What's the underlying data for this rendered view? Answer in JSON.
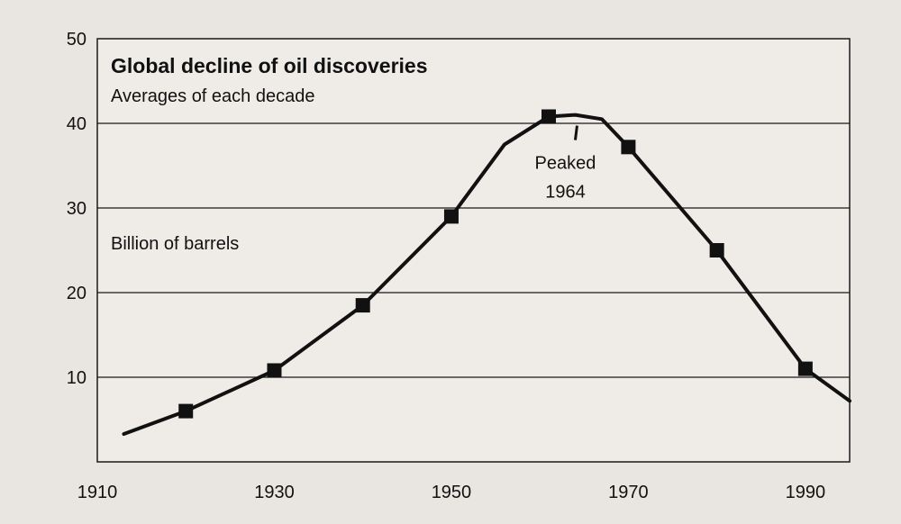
{
  "chart_data": {
    "type": "line",
    "title": "Global decline of oil discoveries",
    "subtitle": "Averages of each decade",
    "ylabel": "Billion of barrels",
    "xlabel": "",
    "xlim": [
      1910,
      1995
    ],
    "ylim": [
      0,
      50
    ],
    "x_ticks": [
      1910,
      1930,
      1950,
      1970,
      1990
    ],
    "y_ticks": [
      10,
      20,
      30,
      40,
      50
    ],
    "grid": "horizontal",
    "line": {
      "x": [
        1913,
        1920,
        1930,
        1940,
        1950,
        1956,
        1961,
        1964,
        1967,
        1970,
        1980,
        1990,
        1995
      ],
      "y": [
        3.3,
        6.0,
        10.8,
        18.5,
        29.0,
        37.5,
        40.8,
        41.0,
        40.5,
        37.2,
        25.0,
        11.0,
        7.2
      ]
    },
    "markers": {
      "x": [
        1920,
        1930,
        1940,
        1950,
        1961,
        1970,
        1980,
        1990
      ],
      "y": [
        6.0,
        10.8,
        18.5,
        29.0,
        40.8,
        37.2,
        25.0,
        11.0
      ]
    },
    "annotation": {
      "line1": "Peaked",
      "line2": "1964",
      "x": 1964,
      "y": 41
    }
  }
}
